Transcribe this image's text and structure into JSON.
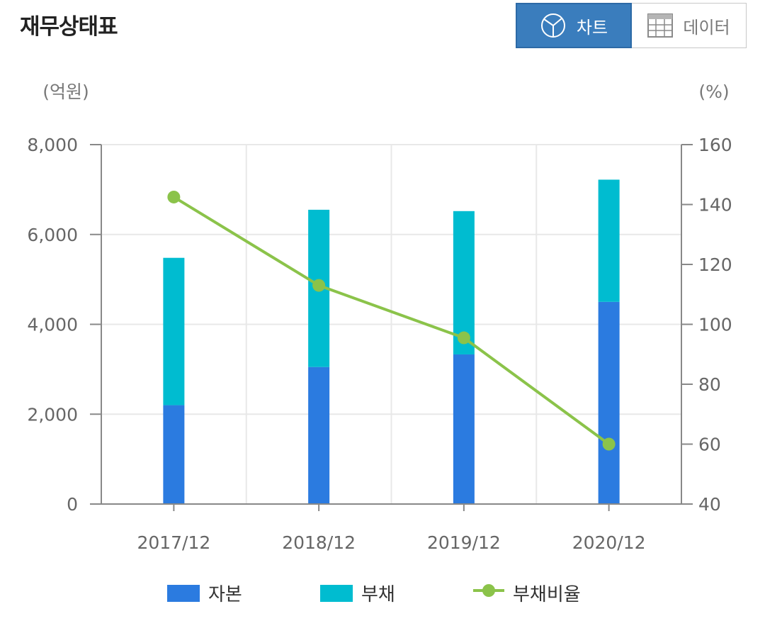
{
  "header": {
    "title": "재무상태표",
    "toggle": {
      "chart_label": "차트",
      "data_label": "데이터",
      "chart_icon": "pie-chart-icon",
      "data_icon": "table-grid-icon",
      "active": "chart"
    }
  },
  "colors": {
    "equity": "#2b7be0",
    "liabilities": "#00bcd0",
    "ratio": "#8bc34a",
    "toggle_active_bg": "#3a7dbd",
    "grid": "#e8e8e8",
    "axis": "#888888"
  },
  "chart_data": {
    "type": "bar",
    "stacked": true,
    "categories": [
      "2017/12",
      "2018/12",
      "2019/12",
      "2020/12"
    ],
    "series": [
      {
        "name": "자본",
        "kind": "bar",
        "axis": "left",
        "values": [
          2200,
          3050,
          3330,
          4500
        ]
      },
      {
        "name": "부채",
        "kind": "bar",
        "axis": "left",
        "values": [
          3280,
          3500,
          3190,
          2720
        ]
      },
      {
        "name": "부채비율",
        "kind": "line",
        "axis": "right",
        "values": [
          142.5,
          113,
          95.5,
          60
        ]
      }
    ],
    "y_left": {
      "unit_label": "(억원)",
      "ylim": [
        0,
        8000
      ],
      "ticks": [
        0,
        2000,
        4000,
        6000,
        8000
      ],
      "tick_labels": [
        "0",
        "2,000",
        "4,000",
        "6,000",
        "8,000"
      ]
    },
    "y_right": {
      "unit_label": "(%)",
      "ylim": [
        40,
        160
      ],
      "ticks": [
        40,
        60,
        80,
        100,
        120,
        140,
        160
      ],
      "tick_labels": [
        "40",
        "60",
        "80",
        "100",
        "120",
        "140",
        "160"
      ]
    },
    "grid": true,
    "legend_position": "bottom"
  }
}
